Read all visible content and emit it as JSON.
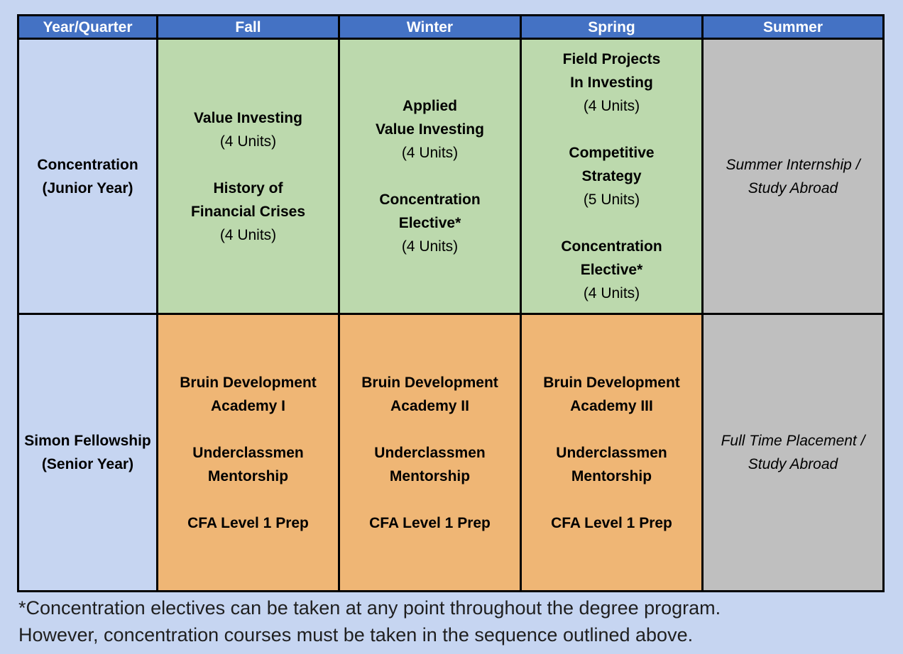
{
  "headers": [
    "Year/Quarter",
    "Fall",
    "Winter",
    "Spring",
    "Summer"
  ],
  "rows": [
    {
      "label": [
        "Concentration",
        "(Junior Year)"
      ],
      "fall": [
        {
          "title": [
            "Value Investing"
          ],
          "units": "(4 Units)"
        },
        {
          "title": [
            "History of",
            "Financial Crises"
          ],
          "units": "(4 Units)"
        }
      ],
      "winter": [
        {
          "title": [
            "Applied",
            "Value Investing"
          ],
          "units": "(4 Units)"
        },
        {
          "title": [
            "Concentration",
            "Elective*"
          ],
          "units": "(4 Units)"
        }
      ],
      "spring": [
        {
          "title": [
            "Field Projects",
            "In Investing"
          ],
          "units": "(4 Units)"
        },
        {
          "title": [
            "Competitive",
            "Strategy"
          ],
          "units": "(5 Units)"
        },
        {
          "title": [
            "Concentration",
            "Elective*"
          ],
          "units": "(4 Units)"
        }
      ],
      "summer": [
        "Summer Internship /",
        "Study Abroad"
      ]
    },
    {
      "label": [
        "Simon Fellowship",
        "(Senior Year)"
      ],
      "fall": [
        [
          "Bruin Development",
          "Academy I"
        ],
        [
          "Underclassmen",
          "Mentorship"
        ],
        [
          "CFA Level 1 Prep"
        ]
      ],
      "winter": [
        [
          "Bruin Development",
          "Academy II"
        ],
        [
          "Underclassmen",
          "Mentorship"
        ],
        [
          "CFA Level 1 Prep"
        ]
      ],
      "spring": [
        [
          "Bruin Development",
          "Academy III"
        ],
        [
          "Underclassmen",
          "Mentorship"
        ],
        [
          "CFA Level 1 Prep"
        ]
      ],
      "summer": [
        "Full Time Placement /",
        "Study Abroad"
      ]
    }
  ],
  "footnote": [
    "*Concentration electives can be taken at any point throughout the degree program.",
    "However, concentration courses must be taken in the sequence outlined above."
  ],
  "colors": {
    "background": "#c6d5f1",
    "header": "#4472c4",
    "junior": "#bcd9ad",
    "senior": "#efb675",
    "summer": "#bfbfbf"
  }
}
